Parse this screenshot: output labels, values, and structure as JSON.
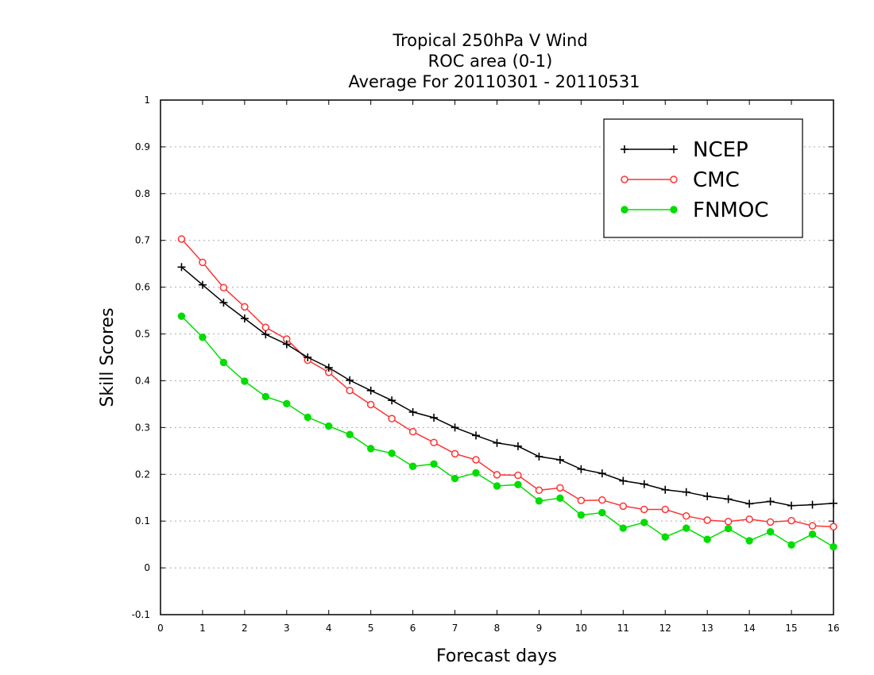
{
  "chart_data": {
    "type": "line",
    "title": [
      "Tropical 250hPa V Wind",
      "ROC area (0-1)",
      "Average For 20110301 - 20110531"
    ],
    "xlabel": "Forecast days",
    "ylabel": "Skill Scores",
    "xlim": [
      0,
      16
    ],
    "ylim": [
      -0.1,
      1
    ],
    "xticks": [
      "0",
      "1",
      "2",
      "3",
      "4",
      "5",
      "6",
      "7",
      "8",
      "9",
      "10",
      "11",
      "12",
      "13",
      "14",
      "15",
      "16"
    ],
    "yticks": [
      "-0.1",
      "0",
      "0.1",
      "0.2",
      "0.3",
      "0.4",
      "0.5",
      "0.6",
      "0.7",
      "0.8",
      "0.9",
      "1"
    ],
    "grid": "horizontal dotted",
    "legend_position": "top-right",
    "x": [
      0.5,
      1,
      1.5,
      2,
      2.5,
      3,
      3.5,
      4,
      4.5,
      5,
      5.5,
      6,
      6.5,
      7,
      7.5,
      8,
      8.5,
      9,
      9.5,
      10,
      10.5,
      11,
      11.5,
      12,
      12.5,
      13,
      13.5,
      14,
      14.5,
      15,
      15.5,
      16
    ],
    "series": [
      {
        "name": "NCEP",
        "color": "#000000",
        "marker": "plus",
        "values": [
          0.643,
          0.605,
          0.567,
          0.533,
          0.499,
          0.478,
          0.45,
          0.428,
          0.401,
          0.379,
          0.358,
          0.333,
          0.321,
          0.3,
          0.283,
          0.267,
          0.26,
          0.238,
          0.231,
          0.211,
          0.202,
          0.186,
          0.179,
          0.167,
          0.162,
          0.153,
          0.147,
          0.137,
          0.142,
          0.133,
          0.135,
          0.138
        ]
      },
      {
        "name": "CMC",
        "color": "#ff3333",
        "marker": "open-circle",
        "values": [
          0.703,
          0.653,
          0.599,
          0.558,
          0.514,
          0.489,
          0.444,
          0.418,
          0.379,
          0.349,
          0.319,
          0.291,
          0.268,
          0.244,
          0.231,
          0.199,
          0.198,
          0.166,
          0.171,
          0.144,
          0.145,
          0.132,
          0.125,
          0.125,
          0.111,
          0.102,
          0.099,
          0.104,
          0.098,
          0.101,
          0.09,
          0.088
        ]
      },
      {
        "name": "FNMOC",
        "color": "#00dd00",
        "marker": "filled-circle",
        "values": [
          0.538,
          0.493,
          0.439,
          0.399,
          0.366,
          0.351,
          0.322,
          0.303,
          0.285,
          0.255,
          0.245,
          0.217,
          0.222,
          0.191,
          0.203,
          0.175,
          0.178,
          0.143,
          0.149,
          0.113,
          0.118,
          0.085,
          0.097,
          0.066,
          0.085,
          0.061,
          0.084,
          0.058,
          0.077,
          0.049,
          0.072,
          0.045
        ]
      }
    ]
  }
}
